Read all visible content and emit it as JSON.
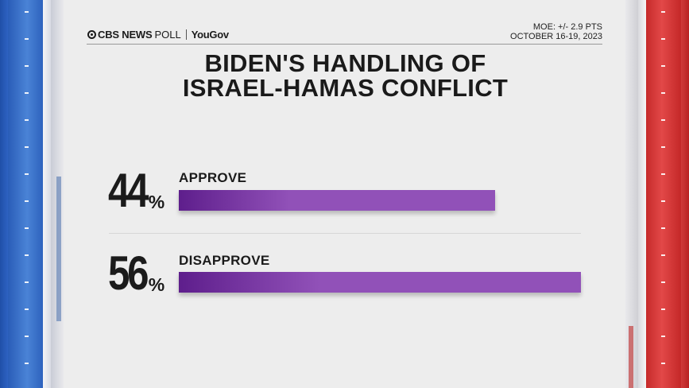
{
  "header": {
    "brand_cbs": "CBS NEWS",
    "brand_poll": "POLL",
    "brand_partner": "YouGov",
    "moe": "MOE: +/- 2.9 PTS",
    "dates": "OCTOBER 16-19, 2023"
  },
  "title_lines": [
    "BIDEN'S HANDLING OF",
    "ISRAEL-HAMAS CONFLICT"
  ],
  "colors": {
    "bar_start": "#5e1e8c",
    "bar_end": "#9151b8",
    "text": "#1b1b1b"
  },
  "chart_data": {
    "type": "bar",
    "orientation": "horizontal",
    "title": "BIDEN'S HANDLING OF ISRAEL-HAMAS CONFLICT",
    "categories": [
      "APPROVE",
      "DISAPPROVE"
    ],
    "values": [
      44,
      56
    ],
    "value_labels": [
      "44",
      "56"
    ],
    "value_suffix": "%",
    "xlim": [
      0,
      56
    ],
    "grid": false,
    "legend": "none"
  }
}
